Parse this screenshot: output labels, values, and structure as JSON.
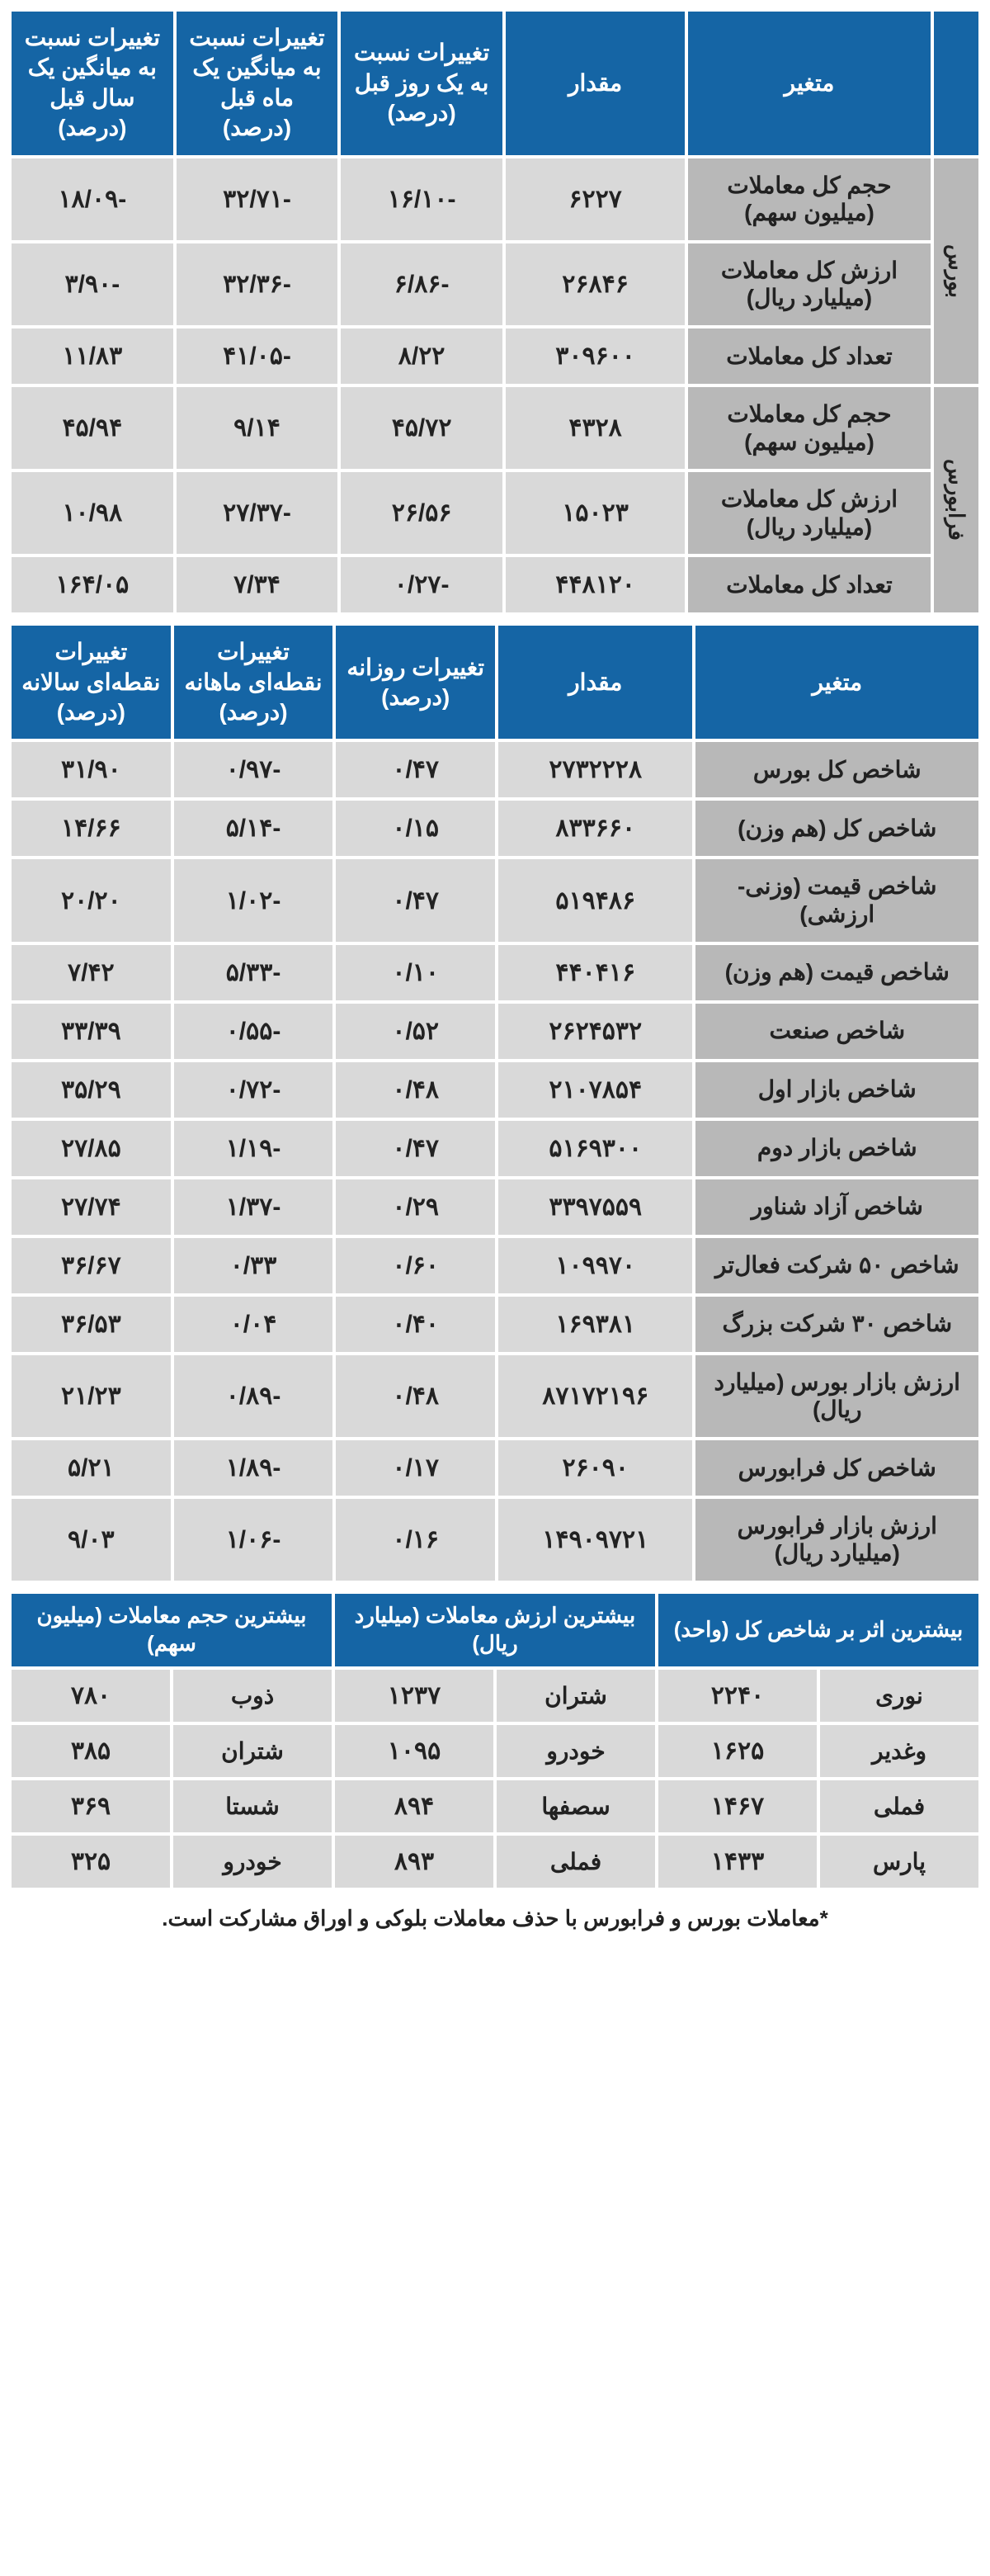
{
  "colors": {
    "header_bg": "#1565a5",
    "header_fg": "#ffffff",
    "cell_bg": "#d9d9d9",
    "label_bg": "#b8b8b8",
    "text": "#222222"
  },
  "table1": {
    "headers": [
      "",
      "متغیر",
      "مقدار",
      "تغییرات نسبت به یک روز قبل (درصد)",
      "تغییرات نسبت به میانگین یک ماه قبل (درصد)",
      "تغییرات نسبت به میانگین یک سال قبل (درصد)"
    ],
    "groups": [
      {
        "name": "بورس",
        "rows": [
          {
            "label": "حجم کل معاملات (میلیون سهم)",
            "v": "۶۲۲۷",
            "d": "-۱۶/۱۰",
            "m": "-۳۲/۷۱",
            "y": "-۱۸/۰۹"
          },
          {
            "label": "ارزش کل معاملات (میلیارد ریال)",
            "v": "۲۶۸۴۶",
            "d": "-۶/۸۶",
            "m": "-۳۲/۳۶",
            "y": "-۳/۹۰"
          },
          {
            "label": "تعداد کل معاملات",
            "v": "۳۰۹۶۰۰",
            "d": "۸/۲۲",
            "m": "-۴۱/۰۵",
            "y": "۱۱/۸۳"
          }
        ]
      },
      {
        "name": "فرابورس",
        "rows": [
          {
            "label": "حجم کل معاملات (میلیون سهم)",
            "v": "۴۳۲۸",
            "d": "۴۵/۷۲",
            "m": "۹/۱۴",
            "y": "۴۵/۹۴"
          },
          {
            "label": "ارزش کل معاملات (میلیارد ریال)",
            "v": "۱۵۰۲۳",
            "d": "۲۶/۵۶",
            "m": "-۲۷/۳۷",
            "y": "۱۰/۹۸"
          },
          {
            "label": "تعداد کل معاملات",
            "v": "۴۴۸۱۲۰",
            "d": "-۰/۲۷",
            "m": "۷/۳۴",
            "y": "۱۶۴/۰۵"
          }
        ]
      }
    ]
  },
  "table2": {
    "headers": [
      "متغیر",
      "مقدار",
      "تغییرات روزانه (درصد)",
      "تغییرات نقطه‌ای ماهانه (درصد)",
      "تغییرات نقطه‌ای سالانه (درصد)"
    ],
    "rows": [
      {
        "label": "شاخص کل بورس",
        "v": "۲۷۳۲۲۲۸",
        "d": "۰/۴۷",
        "m": "-۰/۹۷",
        "y": "۳۱/۹۰"
      },
      {
        "label": "شاخص کل (هم وزن)",
        "v": "۸۳۳۶۶۰",
        "d": "۰/۱۵",
        "m": "-۵/۱۴",
        "y": "۱۴/۶۶"
      },
      {
        "label": "شاخص قیمت (وزنی- ارزشی)",
        "v": "۵۱۹۴۸۶",
        "d": "۰/۴۷",
        "m": "-۱/۰۲",
        "y": "۲۰/۲۰"
      },
      {
        "label": "شاخص قیمت (هم وزن)",
        "v": "۴۴۰۴۱۶",
        "d": "۰/۱۰",
        "m": "-۵/۳۳",
        "y": "۷/۴۲"
      },
      {
        "label": "شاخص صنعت",
        "v": "۲۶۲۴۵۳۲",
        "d": "۰/۵۲",
        "m": "-۰/۵۵",
        "y": "۳۳/۳۹"
      },
      {
        "label": "شاخص بازار اول",
        "v": "۲۱۰۷۸۵۴",
        "d": "۰/۴۸",
        "m": "-۰/۷۲",
        "y": "۳۵/۲۹"
      },
      {
        "label": "شاخص بازار دوم",
        "v": "۵۱۶۹۳۰۰",
        "d": "۰/۴۷",
        "m": "-۱/۱۹",
        "y": "۲۷/۸۵"
      },
      {
        "label": "شاخص آزاد شناور",
        "v": "۳۳۹۷۵۵۹",
        "d": "۰/۲۹",
        "m": "-۱/۳۷",
        "y": "۲۷/۷۴"
      },
      {
        "label": "شاخص ۵۰ شرکت فعال‌تر",
        "v": "۱۰۹۹۷۰",
        "d": "۰/۶۰",
        "m": "۰/۳۳",
        "y": "۳۶/۶۷"
      },
      {
        "label": "شاخص ۳۰ شرکت بزرگ",
        "v": "۱۶۹۳۸۱",
        "d": "۰/۴۰",
        "m": "۰/۰۴",
        "y": "۳۶/۵۳"
      },
      {
        "label": "ارزش بازار بورس (میلیارد ریال)",
        "v": "۸۷۱۷۲۱۹۶",
        "d": "۰/۴۸",
        "m": "-۰/۸۹",
        "y": "۲۱/۲۳"
      },
      {
        "label": "شاخص کل فرابورس",
        "v": "۲۶۰۹۰",
        "d": "۰/۱۷",
        "m": "-۱/۸۹",
        "y": "۵/۲۱"
      },
      {
        "label": "ارزش بازار فرابورس (میلیارد ریال)",
        "v": "۱۴۹۰۹۷۲۱",
        "d": "۰/۱۶",
        "m": "-۱/۰۶",
        "y": "۹/۰۳"
      }
    ]
  },
  "table3": {
    "headers": [
      "بیشترین اثر بر شاخص کل (واحد)",
      "بیشترین ارزش معاملات (میلیارد ریال)",
      "بیشترین حجم معاملات (میلیون سهم)"
    ],
    "rows": [
      {
        "i_sym": "نوری",
        "i_val": "۲۲۴۰",
        "v_sym": "شتران",
        "v_val": "۱۲۳۷",
        "h_sym": "ذوب",
        "h_val": "۷۸۰"
      },
      {
        "i_sym": "وغدیر",
        "i_val": "۱۶۲۵",
        "v_sym": "خودرو",
        "v_val": "۱۰۹۵",
        "h_sym": "شتران",
        "h_val": "۳۸۵"
      },
      {
        "i_sym": "فملی",
        "i_val": "۱۴۶۷",
        "v_sym": "سصفها",
        "v_val": "۸۹۴",
        "h_sym": "شستا",
        "h_val": "۳۶۹"
      },
      {
        "i_sym": "پارس",
        "i_val": "۱۴۳۳",
        "v_sym": "فملی",
        "v_val": "۸۹۳",
        "h_sym": "خودرو",
        "h_val": "۳۲۵"
      }
    ]
  },
  "footnote": "*معاملات بورس و فرابورس با حذف معاملات بلوکی و اوراق مشارکت است."
}
